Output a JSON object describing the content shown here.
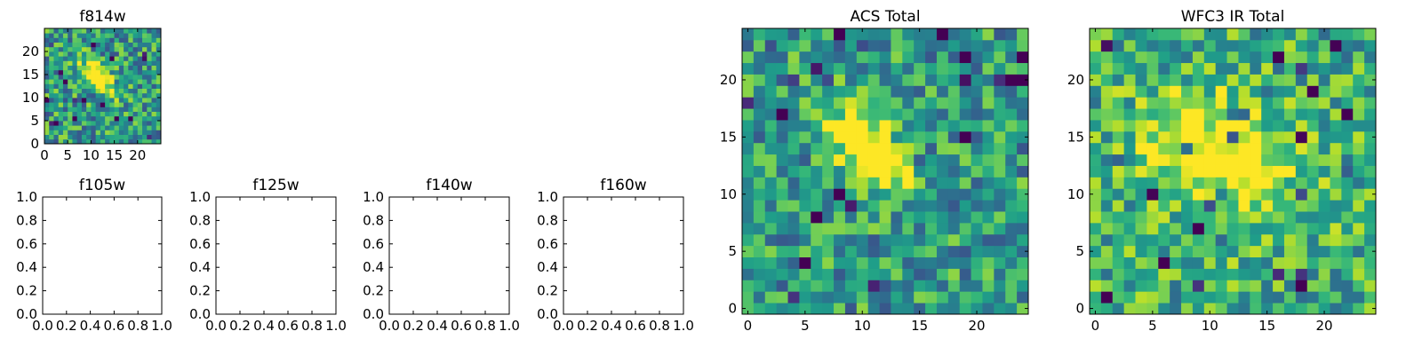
{
  "chart_data": [
    {
      "id": "f814w",
      "type": "heatmap",
      "title": "f814w",
      "grid_size": 25,
      "xlim": [
        0,
        25
      ],
      "ylim": [
        0,
        25
      ],
      "xticks": [
        0,
        5,
        10,
        15,
        20
      ],
      "yticks": [
        0,
        5,
        10,
        15,
        20
      ],
      "colormap": "viridis",
      "source": {
        "center": [
          11,
          14
        ],
        "sigma_major": 3.2,
        "sigma_minor": 1.3,
        "angle_deg": -45,
        "peak": 0.85
      },
      "noise": {
        "mean": 0.55,
        "amplitude": 0.3,
        "seed": 814
      }
    },
    {
      "id": "f105w",
      "type": "empty",
      "title": "f105w",
      "xlim": [
        0,
        1
      ],
      "ylim": [
        0,
        1
      ],
      "xticks": [
        "0.0",
        "0.2",
        "0.4",
        "0.6",
        "0.8",
        "1.0"
      ],
      "yticks": [
        "0.0",
        "0.2",
        "0.4",
        "0.6",
        "0.8",
        "1.0"
      ]
    },
    {
      "id": "f125w",
      "type": "empty",
      "title": "f125w",
      "xlim": [
        0,
        1
      ],
      "ylim": [
        0,
        1
      ],
      "xticks": [
        "0.0",
        "0.2",
        "0.4",
        "0.6",
        "0.8",
        "1.0"
      ],
      "yticks": [
        "0.0",
        "0.2",
        "0.4",
        "0.6",
        "0.8",
        "1.0"
      ]
    },
    {
      "id": "f140w",
      "type": "empty",
      "title": "f140w",
      "xlim": [
        0,
        1
      ],
      "ylim": [
        0,
        1
      ],
      "xticks": [
        "0.0",
        "0.2",
        "0.4",
        "0.6",
        "0.8",
        "1.0"
      ],
      "yticks": [
        "0.0",
        "0.2",
        "0.4",
        "0.6",
        "0.8",
        "1.0"
      ]
    },
    {
      "id": "f160w",
      "type": "empty",
      "title": "f160w",
      "xlim": [
        0,
        1
      ],
      "ylim": [
        0,
        1
      ],
      "xticks": [
        "0.0",
        "0.2",
        "0.4",
        "0.6",
        "0.8",
        "1.0"
      ],
      "yticks": [
        "0.0",
        "0.2",
        "0.4",
        "0.6",
        "0.8",
        "1.0"
      ]
    },
    {
      "id": "acs-total",
      "type": "heatmap",
      "title": "ACS Total",
      "grid_size": 25,
      "xlim": [
        -0.5,
        24.5
      ],
      "ylim": [
        -0.5,
        24.5
      ],
      "xticks": [
        0,
        5,
        10,
        15,
        20
      ],
      "yticks": [
        0,
        5,
        10,
        15,
        20
      ],
      "colormap": "viridis",
      "source": {
        "center": [
          10.5,
          14
        ],
        "sigma_major": 3.0,
        "sigma_minor": 1.5,
        "angle_deg": -45,
        "peak": 0.8
      },
      "noise": {
        "mean": 0.55,
        "amplitude": 0.28,
        "seed": 2024
      }
    },
    {
      "id": "wfc3-ir-total",
      "type": "heatmap",
      "title": "WFC3 IR Total",
      "grid_size": 25,
      "xlim": [
        -0.5,
        24.5
      ],
      "ylim": [
        -0.5,
        24.5
      ],
      "xticks": [
        0,
        5,
        10,
        15,
        20
      ],
      "yticks": [
        0,
        5,
        10,
        15,
        20
      ],
      "colormap": "viridis",
      "source": {
        "center": [
          11,
          13
        ],
        "sigma_major": 5.0,
        "sigma_minor": 3.5,
        "angle_deg": -30,
        "peak": 0.45
      },
      "noise": {
        "mean": 0.62,
        "amplitude": 0.28,
        "seed": 3141
      }
    }
  ]
}
